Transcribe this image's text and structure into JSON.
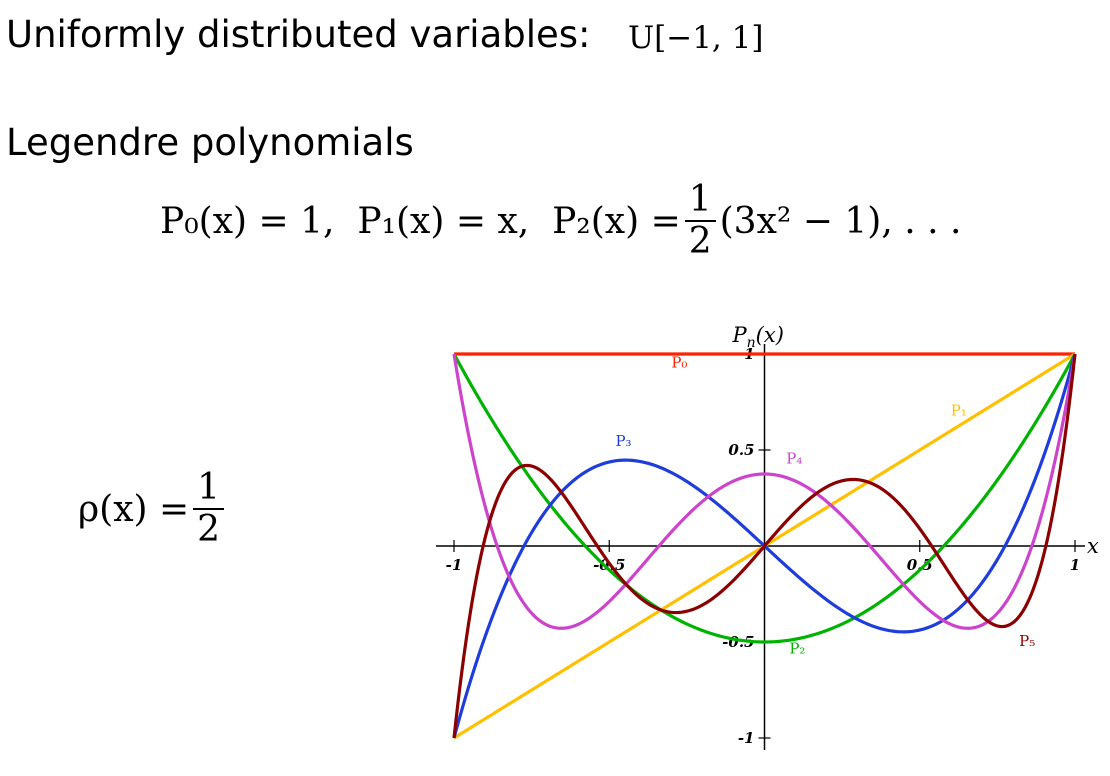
{
  "heading1": "Uniformly distributed variables:",
  "uniform_expr": "U[−1, 1]",
  "heading2": "Legendre polynomials",
  "poly_eq": {
    "p0": "P₀(x) = 1,",
    "p1": "P₁(x) = x,",
    "p2_lhs": "P₂(x) =",
    "p2_num": "1",
    "p2_den": "2",
    "p2_rhs": "(3x² − 1), . . ."
  },
  "rho_eq": {
    "lhs": "ρ(x) =",
    "num": "1",
    "den": "2"
  },
  "chart_data": {
    "type": "line",
    "title": "",
    "ylabel": "Pn(x)",
    "xlabel": "x",
    "xlim": [
      -1,
      1
    ],
    "ylim": [
      -1,
      1
    ],
    "x_ticks": [
      -1,
      -0.5,
      0.5,
      1
    ],
    "y_ticks": [
      1,
      0.5,
      -0.5,
      -1
    ],
    "x_tick_labels": [
      "-1",
      "-0.5",
      "0.5",
      "1"
    ],
    "y_tick_labels": [
      "1",
      "0.5",
      "-0.5",
      "-1"
    ],
    "grid": false,
    "series": [
      {
        "name": "P0",
        "label": "P₀",
        "degree": 0,
        "color": "#ff2200",
        "label_at": [
          -0.3,
          0.93
        ]
      },
      {
        "name": "P1",
        "label": "P₁",
        "degree": 1,
        "color": "#ffc000",
        "label_at": [
          0.6,
          0.68
        ]
      },
      {
        "name": "P2",
        "label": "P₂",
        "degree": 2,
        "color": "#00b300",
        "label_at": [
          0.08,
          -0.56
        ]
      },
      {
        "name": "P3",
        "label": "P₃",
        "degree": 3,
        "color": "#1f3ddb",
        "label_at": [
          -0.48,
          0.52
        ]
      },
      {
        "name": "P4",
        "label": "P₄",
        "degree": 4,
        "color": "#cc44cc",
        "label_at": [
          0.07,
          0.43
        ]
      },
      {
        "name": "P5",
        "label": "P₅",
        "degree": 5,
        "color": "#8b0000",
        "label_at": [
          0.82,
          -0.52
        ]
      }
    ]
  }
}
